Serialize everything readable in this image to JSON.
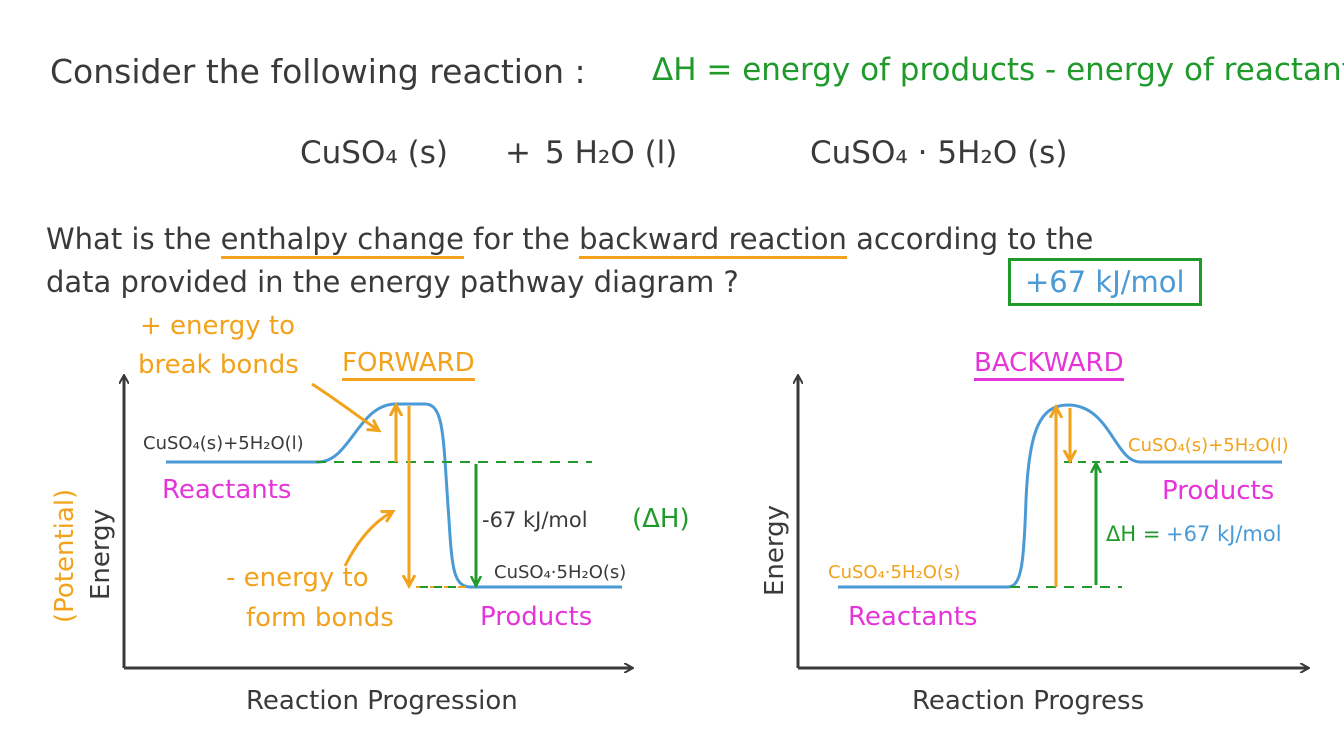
{
  "header": {
    "consider_text": "Consider the following reaction :",
    "definition": "ΔH = energy of products - energy of reactants"
  },
  "equation": {
    "reactant1": "CuSO₄ (s)",
    "plus": "+",
    "reactant2": "5 H₂O (l)",
    "product": "CuSO₄ · 5H₂O (s)"
  },
  "question": {
    "line1_a": "What is the",
    "line1_b": "enthalpy change",
    "line1_c": "for the",
    "line1_d": "backward reaction",
    "line1_e": "according to the",
    "line2": "data provided in the energy pathway diagram ?",
    "answer": "+67 kJ/mol"
  },
  "forward": {
    "title": "FORWARD",
    "yaxis_prefix": "(Potential)",
    "yaxis": "Energy",
    "xaxis": "Reaction Progression",
    "reactant_formula": "CuSO₄(s)+5H₂O(l)",
    "reactants_label": "Reactants",
    "product_formula": "CuSO₄·5H₂O(s)",
    "products_label": "Products",
    "break_note_1": "+ energy to",
    "break_note_2": "break bonds",
    "form_note_1": "- energy to",
    "form_note_2": "form bonds",
    "delta_value": "-67 kJ/mol",
    "delta_symbol": "(ΔH)"
  },
  "backward": {
    "title": "BACKWARD",
    "yaxis": "Energy",
    "xaxis": "Reaction Progress",
    "reactant_formula": "CuSO₄·5H₂O(s)",
    "reactants_label": "Reactants",
    "product_formula": "CuSO₄(s)+5H₂O(l)",
    "products_label": "Products",
    "delta_symbol": "ΔH =",
    "delta_value": "+67 kJ/mol"
  },
  "colors": {
    "text": "#3a3a3a",
    "green": "#1f9a2b",
    "orange": "#f2a21b",
    "magenta": "#e535d9",
    "blue": "#4a9ad6"
  }
}
